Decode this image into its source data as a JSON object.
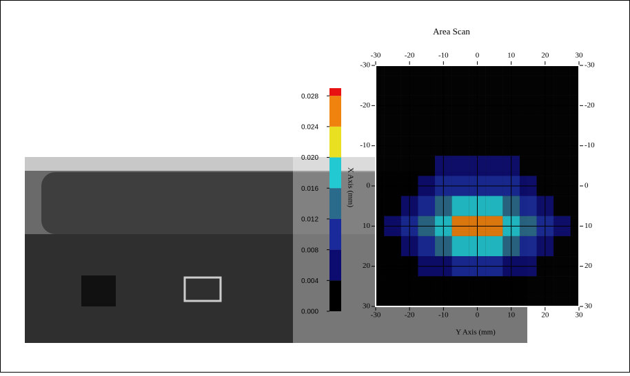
{
  "chart_data": {
    "type": "heatmap",
    "title": "Area Scan",
    "xlabel": "Y Axis (mm)",
    "ylabel": "X Axis (mm)",
    "x": [
      -30,
      -25,
      -20,
      -15,
      -10,
      -5,
      0,
      5,
      10,
      15,
      20,
      25,
      30
    ],
    "y": [
      -30,
      -25,
      -20,
      -15,
      -10,
      -5,
      0,
      5,
      10,
      15,
      20,
      25,
      30
    ],
    "z": [
      [
        0,
        0,
        0,
        0,
        0,
        0,
        0,
        0,
        0,
        0,
        0,
        0,
        0
      ],
      [
        0,
        0,
        0,
        0,
        0,
        0,
        0,
        0,
        0,
        0,
        0,
        0,
        0
      ],
      [
        0,
        0,
        0,
        0,
        0,
        0,
        0,
        0,
        0,
        0,
        0,
        0,
        0
      ],
      [
        0,
        0,
        0,
        0,
        0,
        0,
        0,
        0,
        0,
        0,
        0,
        0,
        0
      ],
      [
        0,
        0,
        0,
        0,
        0,
        0,
        0.001,
        0,
        0,
        0,
        0,
        0,
        0
      ],
      [
        0,
        0,
        0,
        0.002,
        0.004,
        0.005,
        0.006,
        0.005,
        0.004,
        0.002,
        0,
        0,
        0
      ],
      [
        0,
        0,
        0.002,
        0.005,
        0.008,
        0.01,
        0.011,
        0.01,
        0.008,
        0.005,
        0.002,
        0,
        0
      ],
      [
        0,
        0.003,
        0.006,
        0.01,
        0.014,
        0.017,
        0.018,
        0.017,
        0.014,
        0.01,
        0.006,
        0.003,
        0
      ],
      [
        0.002,
        0.005,
        0.009,
        0.014,
        0.019,
        0.024,
        0.026,
        0.024,
        0.019,
        0.014,
        0.009,
        0.005,
        0.002
      ],
      [
        0,
        0.003,
        0.006,
        0.01,
        0.014,
        0.017,
        0.018,
        0.017,
        0.014,
        0.01,
        0.006,
        0.003,
        0
      ],
      [
        0,
        0,
        0.002,
        0.005,
        0.007,
        0.009,
        0.01,
        0.009,
        0.007,
        0.005,
        0.002,
        0,
        0
      ],
      [
        0,
        0,
        0,
        0.001,
        0.002,
        0.003,
        0.003,
        0.003,
        0.002,
        0.001,
        0,
        0,
        0
      ],
      [
        0,
        0,
        0,
        0,
        0,
        0,
        0,
        0,
        0,
        0,
        0,
        0,
        0
      ]
    ],
    "xlim": [
      -30,
      30
    ],
    "ylim": [
      -30,
      30
    ],
    "xticks": [
      -30,
      -20,
      -10,
      0,
      10,
      20,
      30
    ],
    "yticks": [
      -30,
      -20,
      -10,
      0,
      10,
      20,
      30
    ],
    "clim": [
      0,
      0.029
    ],
    "cticks": [
      {
        "value": 0,
        "label": "0.000"
      },
      0.004,
      0.008,
      0.012,
      0.016,
      {
        "value": 0.02,
        "label": "0.020"
      },
      0.024,
      0.028
    ],
    "colors": [
      "#000000",
      "#0c0c70",
      "#1a2a9a",
      "#2a6a8a",
      "#22c8d2",
      "#e8e020",
      "#f0820e",
      "#e81212"
    ],
    "grid": true
  }
}
